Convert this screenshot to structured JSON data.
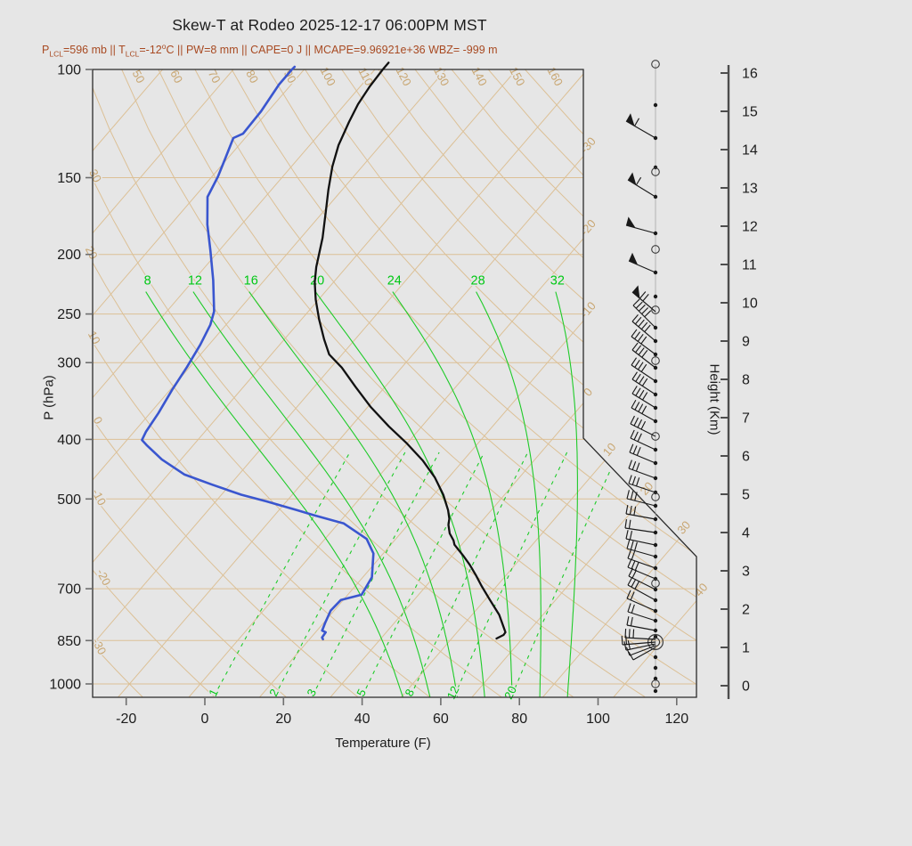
{
  "header": {
    "title": "Skew-T at Rodeo 2025-12-17 06:00PM MST",
    "subtitle_color": "#a84a22",
    "subtitle_segments": [
      {
        "t": "P"
      },
      {
        "t": "LCL",
        "sub": true
      },
      {
        "t": "=596 mb || T"
      },
      {
        "t": "LCL",
        "sub": true
      },
      {
        "t": "=-12"
      },
      {
        "t": "o",
        "sup": true
      },
      {
        "t": "C || PW=8 mm || CAPE=0 J || MCAPE=9.96921e+36 WBZ= -999 m"
      }
    ]
  },
  "axes": {
    "pressure": {
      "label": "P (hPa)",
      "ticks": [
        100,
        150,
        200,
        250,
        300,
        400,
        500,
        700,
        850,
        1000
      ]
    },
    "temperature": {
      "label": "Temperature (F)",
      "ticks": [
        -20,
        0,
        20,
        40,
        60,
        80,
        100,
        120
      ]
    },
    "height": {
      "label": "Height (Km)",
      "ticks": [
        0,
        1,
        2,
        3,
        4,
        5,
        6,
        7,
        8,
        9,
        10,
        11,
        12,
        13,
        14,
        15,
        16
      ]
    }
  },
  "background": {
    "colors": {
      "page": "#e6e6e6",
      "tan_lines": "#dcc096",
      "tan_labels": "#c9a773",
      "green": "#1ecb28",
      "green_label": "#00c814",
      "frame": "#2b2b2b",
      "tick": "#6e6e6e",
      "height_axis": "#4d4d4d",
      "temperature_curve": "#111111",
      "dewpoint_curve": "#3a56cf",
      "barb": "#1a1a1a"
    },
    "isotherms_c": {
      "start": -110,
      "end": 40,
      "step": 10,
      "labeled": [
        -30,
        -20,
        -10,
        0,
        10,
        20,
        30,
        40
      ]
    },
    "dry_adiabats_c": {
      "start": -30,
      "end": 160,
      "step": 10,
      "left_edge_labels": [
        40,
        30,
        20,
        10,
        0,
        -10,
        -20,
        -30
      ],
      "top_edge_labels": [
        50,
        60,
        70,
        80,
        90,
        100,
        110,
        120,
        130,
        140,
        150,
        160
      ]
    },
    "moist_adiabats_c": [
      8,
      12,
      16,
      20,
      24,
      28,
      32
    ],
    "mixing_ratio_gkg": [
      1,
      2,
      3,
      5,
      8,
      12,
      20
    ]
  },
  "chart_data": {
    "type": "line",
    "title": "Skew-T at Rodeo 2025-12-17 06:00PM MST",
    "xlabel": "Temperature (F)",
    "ylabel": "P (hPa)",
    "y2label": "Height (Km)",
    "x_range": [
      -28,
      125
    ],
    "y_scale": "log",
    "y_range": [
      100,
      1050
    ],
    "height_km_range": [
      0,
      16
    ],
    "parameters": {
      "P_LCL_mb": 596,
      "T_LCL_C": -12,
      "PW_mm": 8,
      "CAPE_J": 0,
      "MCAPE": "9.96921e+36",
      "WBZ_m": -999
    },
    "series": [
      {
        "name": "temperature_F_vs_hPa",
        "color": "#111111",
        "points": [
          [
            97.5,
            -92
          ],
          [
            100,
            -92
          ],
          [
            106.5,
            -91.6
          ],
          [
            113.9,
            -90.7
          ],
          [
            121.8,
            -89.1
          ],
          [
            128,
            -87.7
          ],
          [
            132.8,
            -86.7
          ],
          [
            143.8,
            -83.6
          ],
          [
            157,
            -79.5
          ],
          [
            170,
            -75.5
          ],
          [
            187.9,
            -70.5
          ],
          [
            209.7,
            -65.7
          ],
          [
            221.8,
            -62.8
          ],
          [
            236.9,
            -58.7
          ],
          [
            255.2,
            -53.5
          ],
          [
            274.9,
            -47.9
          ],
          [
            290.9,
            -43.3
          ],
          [
            305.6,
            -37.2
          ],
          [
            328.5,
            -29.5
          ],
          [
            353.7,
            -21.4
          ],
          [
            380.9,
            -12.4
          ],
          [
            406.3,
            -4
          ],
          [
            433.3,
            3.8
          ],
          [
            460.9,
            10.4
          ],
          [
            492,
            16.4
          ],
          [
            521.4,
            21
          ],
          [
            538.5,
            23.2
          ],
          [
            550.9,
            24.3
          ],
          [
            569,
            26.5
          ],
          [
            584,
            29
          ],
          [
            593.5,
            30.2
          ],
          [
            619.4,
            35
          ],
          [
            640.1,
            38.5
          ],
          [
            665.9,
            42.4
          ],
          [
            692.7,
            46.1
          ],
          [
            730,
            51.3
          ],
          [
            771.9,
            56.9
          ],
          [
            816,
            61.5
          ],
          [
            824.1,
            62.3
          ],
          [
            832.3,
            62.4
          ],
          [
            843.4,
            61.4
          ]
        ]
      },
      {
        "name": "dewpoint_F_vs_hPa",
        "color": "#3a56cf",
        "points": [
          [
            99,
            -115
          ],
          [
            100,
            -115.1
          ],
          [
            105.8,
            -115.1
          ],
          [
            117,
            -113.8
          ],
          [
            127.2,
            -113.5
          ],
          [
            129.3,
            -115
          ],
          [
            139.6,
            -112.6
          ],
          [
            149.3,
            -110.5
          ],
          [
            161.2,
            -108.7
          ],
          [
            178.8,
            -102.7
          ],
          [
            197.5,
            -96.1
          ],
          [
            220.4,
            -89
          ],
          [
            247.5,
            -82
          ],
          [
            260.3,
            -80
          ],
          [
            280.5,
            -78.2
          ],
          [
            305,
            -76.7
          ],
          [
            332.1,
            -75.5
          ],
          [
            362.2,
            -73.9
          ],
          [
            388.4,
            -73
          ],
          [
            400.9,
            -72.2
          ],
          [
            408.6,
            -69.9
          ],
          [
            431.1,
            -62.9
          ],
          [
            456.3,
            -53.8
          ],
          [
            473.8,
            -44.6
          ],
          [
            492,
            -35
          ],
          [
            504.6,
            -27.1
          ],
          [
            521.4,
            -17.5
          ],
          [
            531.7,
            -11.8
          ],
          [
            548.1,
            -2.6
          ],
          [
            580.9,
            6.6
          ],
          [
            613.4,
            11.5
          ],
          [
            670.3,
            16.3
          ],
          [
            715.5,
            17.5
          ],
          [
            730,
            13.4
          ],
          [
            759.5,
            13.1
          ],
          [
            795.4,
            14.4
          ],
          [
            818.7,
            15.3
          ],
          [
            824.1,
            16.6
          ],
          [
            840.3,
            16.8
          ],
          [
            845.7,
            17.4
          ]
        ]
      }
    ]
  },
  "winds": {
    "staff_x": 736,
    "barbs": [
      [
        155,
        -33,
        -19,
        1,
        1
      ],
      [
        221,
        -31,
        -19,
        1,
        1
      ],
      [
        262,
        -33,
        -9,
        0,
        1
      ],
      [
        306,
        -30,
        -13,
        0,
        1
      ],
      [
        350,
        -26,
        -22,
        2,
        1
      ],
      [
        368,
        -25,
        -25,
        5,
        0
      ],
      [
        383,
        -26,
        -22,
        5,
        0
      ],
      [
        398,
        -27,
        -20,
        4,
        0
      ],
      [
        413,
        -26,
        -20,
        4,
        0
      ],
      [
        428,
        -27,
        -18,
        4,
        0
      ],
      [
        443,
        -26,
        -17,
        4,
        0
      ],
      [
        458,
        -26,
        -16,
        4,
        0
      ],
      [
        473,
        -27,
        -15,
        4,
        0
      ],
      [
        490,
        -28,
        -14,
        4,
        0
      ],
      [
        505,
        -28,
        -13,
        3,
        0
      ],
      [
        520,
        -29,
        -12,
        3,
        0
      ],
      [
        537,
        -30,
        -11,
        3,
        0
      ],
      [
        553,
        -30,
        -10,
        3,
        0
      ],
      [
        568,
        -32,
        -8,
        3,
        0
      ],
      [
        583,
        -33,
        -6,
        3,
        0
      ],
      [
        598,
        -34,
        -5,
        2,
        0
      ],
      [
        612,
        -33,
        -7,
        2,
        0
      ],
      [
        625,
        -32,
        -9,
        3,
        0
      ],
      [
        638,
        -31,
        -11,
        2,
        0
      ],
      [
        650,
        -31,
        -13,
        3,
        0
      ],
      [
        662,
        -30,
        -15,
        2,
        0
      ],
      [
        674,
        -31,
        -17,
        3,
        0
      ],
      [
        686,
        -32,
        -14,
        2,
        0
      ],
      [
        697,
        -31,
        -10,
        2,
        0
      ],
      [
        708,
        -32,
        -6,
        2,
        0
      ],
      [
        718,
        -34,
        -2,
        3,
        0
      ],
      [
        721,
        -37,
        3,
        2,
        0
      ],
      [
        723,
        -33,
        7,
        2,
        0
      ],
      [
        725,
        -29,
        11,
        1,
        0
      ],
      [
        727,
        -25,
        14,
        1,
        0
      ]
    ],
    "dots": [
      118,
      155,
      188,
      221,
      262,
      306,
      333,
      368,
      383,
      398,
      413,
      428,
      443,
      458,
      473,
      505,
      520,
      537,
      553,
      568,
      583,
      598,
      612,
      625,
      638,
      650,
      662,
      674,
      686,
      697,
      708,
      715,
      738,
      750,
      762,
      776
    ],
    "circles": [
      72,
      193,
      280,
      348,
      405,
      490,
      558,
      655,
      768
    ],
    "double_circles": [
      721
    ]
  }
}
